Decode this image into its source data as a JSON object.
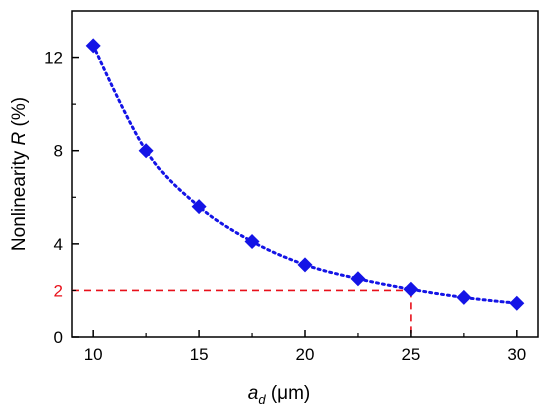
{
  "chart_data": {
    "type": "scatter",
    "x_label": {
      "base": "a",
      "subscript": "d",
      "unit": " (μm)"
    },
    "y_label": {
      "prefix": "Nonlinearity ",
      "symbol": "R",
      "unit": " (%)"
    },
    "xlim": [
      9,
      31
    ],
    "ylim": [
      0,
      14
    ],
    "x_ticks": [
      "10",
      "15",
      "20",
      "25",
      "30"
    ],
    "y_ticks": [
      "0",
      "4",
      "8",
      "12"
    ],
    "series": [
      {
        "marker": "diamond",
        "line_style": "dotted",
        "color": "#1414e6",
        "x": [
          10,
          12.5,
          15,
          17.5,
          20,
          22.5,
          25,
          27.5,
          30
        ],
        "y": [
          12.5,
          8.0,
          5.6,
          4.1,
          3.1,
          2.5,
          2.05,
          1.7,
          1.45
        ]
      }
    ],
    "annotation": {
      "x": 25,
      "y": 2,
      "label": "2",
      "color": "#e8101a",
      "line_style": "dashed"
    }
  }
}
